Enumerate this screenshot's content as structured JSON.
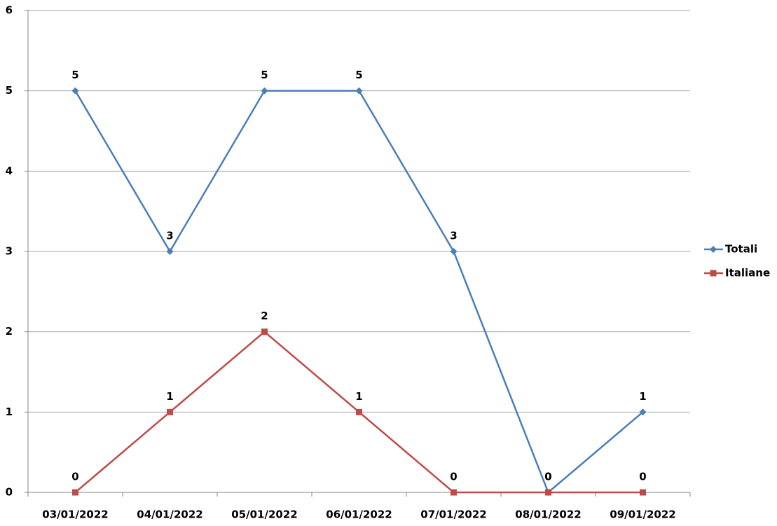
{
  "chart_data": {
    "type": "line",
    "categories": [
      "03/01/2022",
      "04/01/2022",
      "05/01/2022",
      "06/01/2022",
      "07/01/2022",
      "08/01/2022",
      "09/01/2022"
    ],
    "series": [
      {
        "name": "Totali",
        "color": "#4a7ebb",
        "marker": "diamond",
        "values": [
          5,
          3,
          5,
          5,
          3,
          0,
          1
        ]
      },
      {
        "name": "Italiane",
        "color": "#be4b48",
        "marker": "square",
        "values": [
          0,
          1,
          2,
          1,
          0,
          0,
          0
        ]
      }
    ],
    "ylim": [
      0,
      6
    ],
    "yticks": [
      0,
      1,
      2,
      3,
      4,
      5,
      6
    ],
    "grid": true,
    "legend": "right"
  }
}
